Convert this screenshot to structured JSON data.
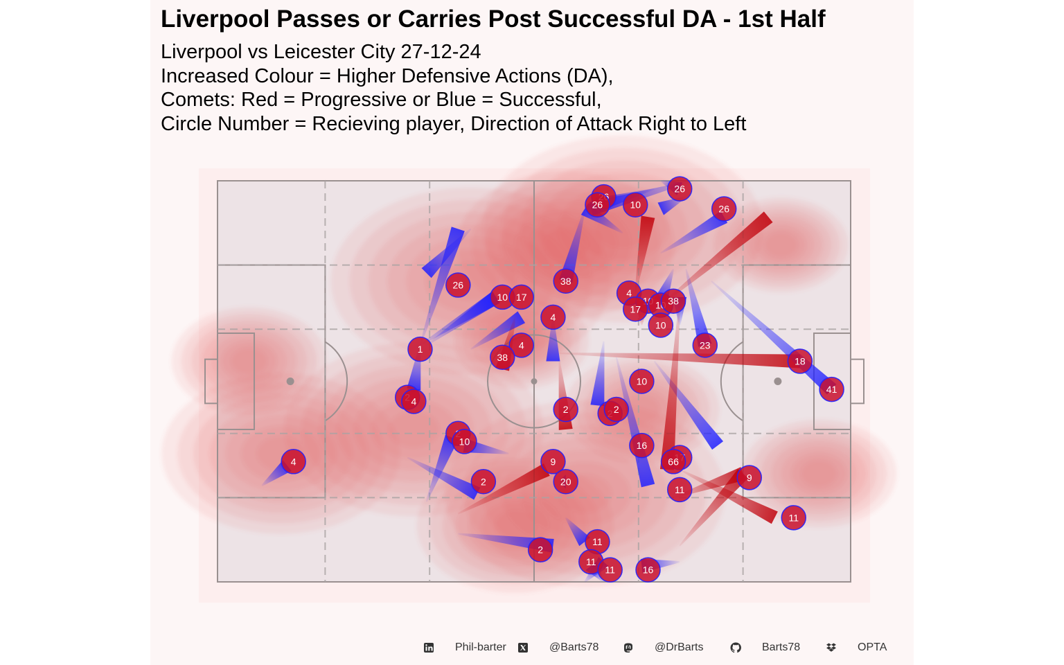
{
  "header": {
    "title": "Liverpool Passes or Carries Post Successful DA - 1st Half",
    "subtitle_lines": [
      "Liverpool vs Leicester City 27-12-24",
      "Increased Colour = Higher Defensive Actions (DA),",
      "Comets: Red = Progressive or Blue = Successful,",
      "Circle Number = Recieving player, Direction of Attack Right to Left"
    ]
  },
  "footer": {
    "linkedin": "Phil-barter",
    "x_handle": "@Barts78",
    "mastodon": "@DrBarts",
    "github": "Barts78",
    "source": "OPTA"
  },
  "colors": {
    "panel_background": "#fdf6f6",
    "pitch_background": "#ede3e6",
    "pitch_lines": "#9a9090",
    "successful": "#2020ff",
    "progressive": "#c0000a",
    "receiver_circle": "#c8102e",
    "density": "#e4555a"
  },
  "chart_data": {
    "type": "scatter",
    "description_units": "pitch coordinates 0-100 (x length, y width)",
    "xlim": [
      0,
      100
    ],
    "ylim": [
      0,
      100
    ],
    "legend": "none",
    "comets": [
      {
        "type": "successful",
        "from": [
          69,
          98
        ],
        "to": [
          60,
          94
        ],
        "label": "26"
      },
      {
        "type": "successful",
        "from": [
          75,
          100
        ],
        "to": [
          59,
          93
        ],
        "label": "26"
      },
      {
        "type": "successful",
        "from": [
          64,
          87
        ],
        "to": [
          58,
          93
        ],
        "label": "26"
      },
      {
        "type": "successful",
        "from": [
          58,
          93
        ],
        "to": [
          55,
          75
        ],
        "label": "38"
      },
      {
        "type": "successful",
        "from": [
          74,
          96
        ],
        "to": [
          70,
          93
        ],
        "label": "10"
      },
      {
        "type": "successful",
        "from": [
          70,
          100
        ],
        "to": [
          73,
          98
        ],
        "label": "26"
      },
      {
        "type": "successful",
        "from": [
          70,
          82
        ],
        "to": [
          80,
          91
        ],
        "label": "26"
      },
      {
        "type": "progressive",
        "from": [
          66,
          72
        ],
        "to": [
          68,
          91
        ],
        "label": "4"
      },
      {
        "type": "progressive",
        "from": [
          70,
          69
        ],
        "to": [
          87,
          91
        ],
        "label": "38"
      },
      {
        "type": "successful",
        "from": [
          72,
          78
        ],
        "to": [
          70,
          70
        ],
        "label": "10"
      },
      {
        "type": "progressive",
        "from": [
          67,
          64
        ],
        "to": [
          67,
          70
        ],
        "label": "17"
      },
      {
        "type": "successful",
        "from": [
          73,
          64
        ],
        "to": [
          73,
          71
        ],
        "label": "10"
      },
      {
        "type": "successful",
        "from": [
          70,
          64
        ],
        "to": [
          70,
          64
        ],
        "label": "10"
      },
      {
        "type": "successful",
        "from": [
          74,
          78
        ],
        "to": [
          77,
          59
        ],
        "label": "23"
      },
      {
        "type": "progressive",
        "from": [
          54,
          57
        ],
        "to": [
          92,
          55
        ],
        "label": "18"
      },
      {
        "type": "successful",
        "from": [
          78,
          75
        ],
        "to": [
          97,
          48
        ],
        "label": "41"
      },
      {
        "type": "successful",
        "from": [
          40,
          88
        ],
        "to": [
          33,
          77
        ],
        "label": "26"
      },
      {
        "type": "successful",
        "from": [
          32,
          59
        ],
        "to": [
          44,
          71
        ],
        "label": "10"
      },
      {
        "type": "successful",
        "from": [
          33,
          59
        ],
        "to": [
          44,
          71
        ],
        "label": "17"
      },
      {
        "type": "successful",
        "from": [
          32,
          59
        ],
        "to": [
          38,
          88
        ],
        "label": "1"
      },
      {
        "type": "successful",
        "from": [
          32,
          59
        ],
        "to": [
          31,
          48
        ],
        "label": "2"
      },
      {
        "type": "successful",
        "from": [
          31,
          47
        ],
        "to": [
          31,
          48
        ],
        "label": "4"
      },
      {
        "type": "successful",
        "from": [
          40,
          58
        ],
        "to": [
          48,
          66
        ],
        "label": "4"
      },
      {
        "type": "progressive",
        "from": [
          47,
          66
        ],
        "to": [
          45,
          53
        ],
        "label": "38"
      },
      {
        "type": "successful",
        "from": [
          53,
          66
        ],
        "to": [
          53,
          55
        ],
        "label": "4"
      },
      {
        "type": "progressive",
        "from": [
          54,
          55
        ],
        "to": [
          55,
          38
        ],
        "label": "2"
      },
      {
        "type": "successful",
        "from": [
          61,
          60
        ],
        "to": [
          60,
          44
        ],
        "label": "2"
      },
      {
        "type": "successful",
        "from": [
          63,
          56
        ],
        "to": [
          68,
          24
        ],
        "label": "16"
      },
      {
        "type": "successful",
        "from": [
          69,
          55
        ],
        "to": [
          79,
          34
        ],
        "label": "66"
      },
      {
        "type": "progressive",
        "from": [
          73,
          70
        ],
        "to": [
          71,
          28
        ],
        "label": "17"
      },
      {
        "type": "successful",
        "from": [
          33,
          20
        ],
        "to": [
          37,
          36
        ],
        "label": "2"
      },
      {
        "type": "successful",
        "from": [
          46,
          32
        ],
        "to": [
          39,
          34
        ],
        "label": "10"
      },
      {
        "type": "successful",
        "from": [
          30,
          31
        ],
        "to": [
          41,
          22
        ],
        "label": "2"
      },
      {
        "type": "progressive",
        "from": [
          38,
          17
        ],
        "to": [
          52,
          28
        ],
        "label": "9"
      },
      {
        "type": "successful",
        "from": [
          54,
          25
        ],
        "to": [
          55,
          25
        ],
        "label": "20"
      },
      {
        "type": "progressive",
        "from": [
          73,
          9
        ],
        "to": [
          83,
          27
        ],
        "label": "11"
      },
      {
        "type": "progressive",
        "from": [
          72,
          21
        ],
        "to": [
          83,
          27
        ],
        "label": "9"
      },
      {
        "type": "progressive",
        "from": [
          73,
          28
        ],
        "to": [
          88,
          16
        ],
        "label": "11"
      },
      {
        "type": "successful",
        "from": [
          7,
          24
        ],
        "to": [
          11,
          29
        ],
        "label": "4"
      },
      {
        "type": "successful",
        "from": [
          38,
          12
        ],
        "to": [
          53,
          9
        ],
        "label": "2"
      },
      {
        "type": "successful",
        "from": [
          55,
          16
        ],
        "to": [
          58,
          10
        ],
        "label": "11"
      },
      {
        "type": "successful",
        "from": [
          58,
          0
        ],
        "to": [
          61,
          5
        ],
        "label": "11"
      },
      {
        "type": "successful",
        "from": [
          61,
          0
        ],
        "to": [
          59,
          4
        ],
        "label": "11"
      },
      {
        "type": "successful",
        "from": [
          73,
          5
        ],
        "to": [
          67,
          4
        ],
        "label": "16"
      }
    ],
    "receivers": [
      {
        "x": 61,
        "y": 96,
        "label": "26"
      },
      {
        "x": 60,
        "y": 94,
        "label": "26"
      },
      {
        "x": 66,
        "y": 94,
        "label": "10"
      },
      {
        "x": 73,
        "y": 98,
        "label": "26"
      },
      {
        "x": 80,
        "y": 93,
        "label": "26"
      },
      {
        "x": 55,
        "y": 75,
        "label": "38"
      },
      {
        "x": 38,
        "y": 74,
        "label": "26"
      },
      {
        "x": 45,
        "y": 71,
        "label": "10"
      },
      {
        "x": 48,
        "y": 71,
        "label": "17"
      },
      {
        "x": 65,
        "y": 72,
        "label": "4"
      },
      {
        "x": 68,
        "y": 70,
        "label": "10"
      },
      {
        "x": 66,
        "y": 68,
        "label": "17"
      },
      {
        "x": 70,
        "y": 69,
        "label": "10"
      },
      {
        "x": 72,
        "y": 70,
        "label": "38"
      },
      {
        "x": 70,
        "y": 64,
        "label": "10"
      },
      {
        "x": 53,
        "y": 66,
        "label": "4"
      },
      {
        "x": 48,
        "y": 59,
        "label": "4"
      },
      {
        "x": 32,
        "y": 58,
        "label": "1"
      },
      {
        "x": 45,
        "y": 56,
        "label": "38"
      },
      {
        "x": 77,
        "y": 59,
        "label": "23"
      },
      {
        "x": 92,
        "y": 55,
        "label": "18"
      },
      {
        "x": 30,
        "y": 46,
        "label": "2"
      },
      {
        "x": 31,
        "y": 45,
        "label": "4"
      },
      {
        "x": 67,
        "y": 50,
        "label": "10"
      },
      {
        "x": 97,
        "y": 48,
        "label": "41"
      },
      {
        "x": 55,
        "y": 43,
        "label": "2"
      },
      {
        "x": 62,
        "y": 42,
        "label": "2"
      },
      {
        "x": 63,
        "y": 43,
        "label": "2"
      },
      {
        "x": 38,
        "y": 37,
        "label": "2"
      },
      {
        "x": 39,
        "y": 35,
        "label": "10"
      },
      {
        "x": 67,
        "y": 34,
        "label": "16"
      },
      {
        "x": 73,
        "y": 31,
        "label": "17"
      },
      {
        "x": 72,
        "y": 30,
        "label": "66"
      },
      {
        "x": 12,
        "y": 30,
        "label": "4"
      },
      {
        "x": 53,
        "y": 30,
        "label": "9"
      },
      {
        "x": 42,
        "y": 25,
        "label": "2"
      },
      {
        "x": 55,
        "y": 25,
        "label": "20"
      },
      {
        "x": 84,
        "y": 26,
        "label": "9"
      },
      {
        "x": 73,
        "y": 23,
        "label": "11"
      },
      {
        "x": 91,
        "y": 16,
        "label": "11"
      },
      {
        "x": 60,
        "y": 10,
        "label": "11"
      },
      {
        "x": 51,
        "y": 8,
        "label": "2"
      },
      {
        "x": 59,
        "y": 5,
        "label": "11"
      },
      {
        "x": 62,
        "y": 3,
        "label": "11"
      },
      {
        "x": 68,
        "y": 3,
        "label": "16"
      }
    ],
    "density_levels": 7,
    "density_hotspots": [
      {
        "x": 40,
        "y": 75,
        "weight": 1.0
      },
      {
        "x": 64,
        "y": 88,
        "weight": 1.0
      },
      {
        "x": 55,
        "y": 84,
        "weight": 0.7
      },
      {
        "x": 31,
        "y": 38,
        "weight": 0.9
      },
      {
        "x": 58,
        "y": 22,
        "weight": 1.0
      },
      {
        "x": 47,
        "y": 14,
        "weight": 0.6
      },
      {
        "x": 10,
        "y": 32,
        "weight": 0.8
      },
      {
        "x": 5,
        "y": 55,
        "weight": 0.4
      },
      {
        "x": 95,
        "y": 27,
        "weight": 0.4
      },
      {
        "x": 89,
        "y": 84,
        "weight": 0.3
      },
      {
        "x": 67,
        "y": 43,
        "weight": 0.4
      },
      {
        "x": 48,
        "y": 60,
        "weight": 0.3
      }
    ]
  }
}
